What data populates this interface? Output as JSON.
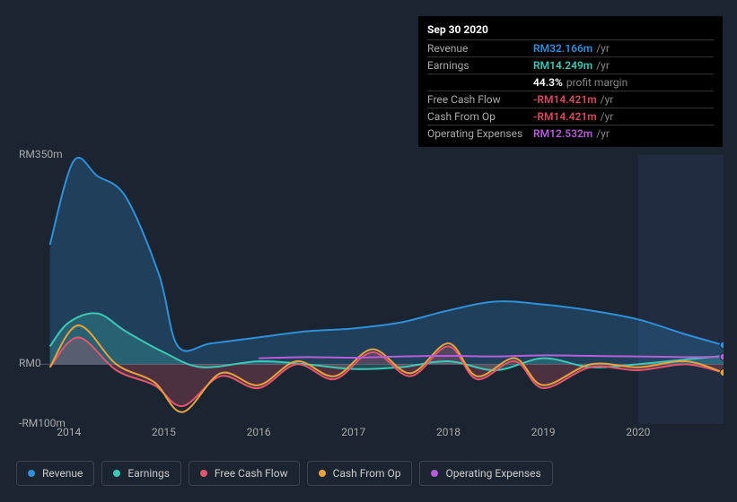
{
  "tooltip": {
    "date": "Sep 30 2020",
    "rows": [
      {
        "label": "Revenue",
        "value": "RM32.166m",
        "suffix": "/yr",
        "color": "#2f8fd8"
      },
      {
        "label": "Earnings",
        "value": "RM14.249m",
        "suffix": "/yr",
        "color": "#3ec7b6"
      },
      {
        "label": "",
        "value": "44.3%",
        "suffix": "profit margin",
        "color": "#ffffff"
      },
      {
        "label": "Free Cash Flow",
        "value": "-RM14.421m",
        "suffix": "/yr",
        "color": "#d54a5f"
      },
      {
        "label": "Cash From Op",
        "value": "-RM14.421m",
        "suffix": "/yr",
        "color": "#d54a5f"
      },
      {
        "label": "Operating Expenses",
        "value": "RM12.532m",
        "suffix": "/yr",
        "color": "#b45fd8"
      }
    ]
  },
  "chart": {
    "type": "area",
    "background_color": "#1b2431",
    "ylim": [
      -100,
      350
    ],
    "y_ticks": [
      {
        "value": 350,
        "label": "RM350m"
      },
      {
        "value": 0,
        "label": "RM0"
      },
      {
        "value": -100,
        "label": "-RM100m"
      }
    ],
    "x_years": [
      2014,
      2015,
      2016,
      2017,
      2018,
      2019,
      2020
    ],
    "x_domain": [
      2013.7,
      2020.9
    ],
    "forecast_from": 2020.0,
    "zero_line_color": "#555d6e",
    "series": [
      {
        "name": "Revenue",
        "color": "#2f8fd8",
        "fill": true,
        "data": [
          [
            2013.8,
            200
          ],
          [
            2014.05,
            340
          ],
          [
            2014.3,
            315
          ],
          [
            2014.6,
            280
          ],
          [
            2014.95,
            150
          ],
          [
            2015.15,
            30
          ],
          [
            2015.5,
            35
          ],
          [
            2016.0,
            45
          ],
          [
            2016.5,
            55
          ],
          [
            2017.0,
            60
          ],
          [
            2017.5,
            70
          ],
          [
            2018.0,
            90
          ],
          [
            2018.5,
            105
          ],
          [
            2019.0,
            100
          ],
          [
            2019.5,
            90
          ],
          [
            2020.0,
            75
          ],
          [
            2020.5,
            50
          ],
          [
            2020.9,
            32
          ]
        ]
      },
      {
        "name": "Earnings",
        "color": "#3ec7b6",
        "fill": true,
        "data": [
          [
            2013.8,
            30
          ],
          [
            2014.0,
            70
          ],
          [
            2014.3,
            85
          ],
          [
            2014.6,
            55
          ],
          [
            2015.0,
            20
          ],
          [
            2015.4,
            -5
          ],
          [
            2016.0,
            5
          ],
          [
            2016.5,
            0
          ],
          [
            2017.0,
            -8
          ],
          [
            2017.5,
            -5
          ],
          [
            2018.0,
            5
          ],
          [
            2018.5,
            -10
          ],
          [
            2019.0,
            10
          ],
          [
            2019.5,
            -5
          ],
          [
            2020.0,
            0
          ],
          [
            2020.5,
            8
          ],
          [
            2020.9,
            14
          ]
        ]
      },
      {
        "name": "Free Cash Flow",
        "color": "#e2566e",
        "fill": true,
        "data": [
          [
            2013.8,
            -5
          ],
          [
            2014.1,
            45
          ],
          [
            2014.5,
            -10
          ],
          [
            2014.9,
            -35
          ],
          [
            2015.2,
            -70
          ],
          [
            2015.6,
            -20
          ],
          [
            2016.0,
            -40
          ],
          [
            2016.4,
            0
          ],
          [
            2016.8,
            -25
          ],
          [
            2017.2,
            20
          ],
          [
            2017.6,
            -20
          ],
          [
            2018.0,
            30
          ],
          [
            2018.3,
            -25
          ],
          [
            2018.7,
            5
          ],
          [
            2019.0,
            -40
          ],
          [
            2019.5,
            -5
          ],
          [
            2020.0,
            -10
          ],
          [
            2020.5,
            0
          ],
          [
            2020.9,
            -14
          ]
        ]
      },
      {
        "name": "Cash From Op",
        "color": "#e8a23d",
        "fill": false,
        "data": [
          [
            2013.8,
            -5
          ],
          [
            2014.1,
            65
          ],
          [
            2014.5,
            0
          ],
          [
            2014.9,
            -30
          ],
          [
            2015.2,
            -80
          ],
          [
            2015.6,
            -15
          ],
          [
            2016.0,
            -35
          ],
          [
            2016.4,
            5
          ],
          [
            2016.8,
            -20
          ],
          [
            2017.2,
            25
          ],
          [
            2017.6,
            -15
          ],
          [
            2018.0,
            35
          ],
          [
            2018.3,
            -20
          ],
          [
            2018.7,
            10
          ],
          [
            2019.0,
            -35
          ],
          [
            2019.5,
            0
          ],
          [
            2020.0,
            -5
          ],
          [
            2020.5,
            5
          ],
          [
            2020.9,
            -14
          ]
        ]
      },
      {
        "name": "Operating Expenses",
        "color": "#b45fd8",
        "fill": false,
        "data": [
          [
            2016.0,
            10
          ],
          [
            2016.5,
            12
          ],
          [
            2017.0,
            11
          ],
          [
            2017.5,
            13
          ],
          [
            2018.0,
            14
          ],
          [
            2018.5,
            13
          ],
          [
            2019.0,
            15
          ],
          [
            2019.5,
            14
          ],
          [
            2020.0,
            13
          ],
          [
            2020.5,
            12
          ],
          [
            2020.9,
            12.5
          ]
        ]
      }
    ],
    "end_markers": [
      {
        "color": "#2f8fd8",
        "value": 32
      },
      {
        "color": "#b45fd8",
        "value": 12.5
      },
      {
        "color": "#e8a23d",
        "value": -14
      }
    ]
  },
  "legend": [
    {
      "label": "Revenue",
      "color": "#2f8fd8"
    },
    {
      "label": "Earnings",
      "color": "#3ec7b6"
    },
    {
      "label": "Free Cash Flow",
      "color": "#e2566e"
    },
    {
      "label": "Cash From Op",
      "color": "#e8a23d"
    },
    {
      "label": "Operating Expenses",
      "color": "#b45fd8"
    }
  ]
}
